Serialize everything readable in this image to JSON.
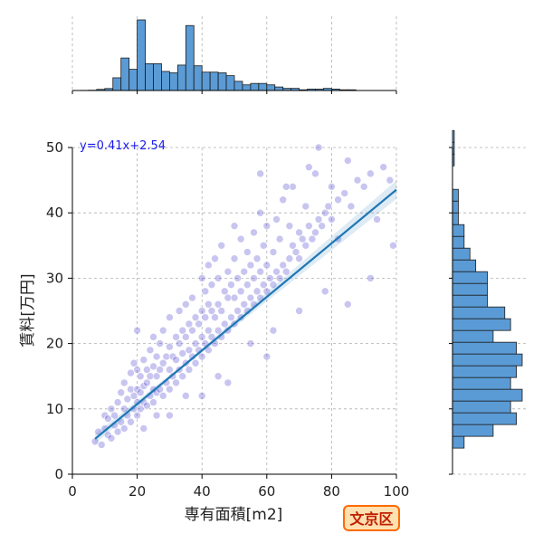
{
  "chart_data": {
    "type": "scatter",
    "title": "",
    "xlabel": "専有面積[m2]",
    "ylabel": "賃料[万円]",
    "xlim": [
      0,
      100
    ],
    "ylim": [
      0,
      50
    ],
    "xticks": [
      0,
      20,
      40,
      60,
      80,
      100
    ],
    "yticks": [
      0,
      10,
      20,
      30,
      40,
      50
    ],
    "grid": true,
    "regression": {
      "label": "y=0.41x+2.54",
      "slope": 0.41,
      "intercept": 2.54,
      "x_range": [
        7,
        100
      ]
    },
    "badge": "文京区",
    "colors": {
      "points": "#3a2fc8",
      "regression_line": "#1f77b4",
      "histogram_fill": "#5b9bd5",
      "equation_text": "#1a1aee",
      "badge_fill": "#ffe0b0",
      "badge_border": "#ff6a00",
      "badge_text": "#c02000"
    },
    "sample_points": [
      [
        7,
        5
      ],
      [
        8,
        6.5
      ],
      [
        9,
        4.5
      ],
      [
        10,
        7
      ],
      [
        10,
        9
      ],
      [
        11,
        6
      ],
      [
        11,
        8.5
      ],
      [
        12,
        5.5
      ],
      [
        12,
        10
      ],
      [
        13,
        7.5
      ],
      [
        13,
        9
      ],
      [
        14,
        6.5
      ],
      [
        14,
        11
      ],
      [
        15,
        8
      ],
      [
        15,
        12.5
      ],
      [
        16,
        7
      ],
      [
        16,
        10
      ],
      [
        16,
        14
      ],
      [
        17,
        9
      ],
      [
        17,
        11.5
      ],
      [
        18,
        8
      ],
      [
        18,
        13
      ],
      [
        18,
        15.5
      ],
      [
        19,
        10
      ],
      [
        19,
        12
      ],
      [
        19,
        17
      ],
      [
        20,
        9
      ],
      [
        20,
        11
      ],
      [
        20,
        13
      ],
      [
        20,
        16
      ],
      [
        21,
        10
      ],
      [
        21,
        12.5
      ],
      [
        21,
        15
      ],
      [
        22,
        11
      ],
      [
        22,
        13.5
      ],
      [
        22,
        17.5
      ],
      [
        23,
        10.5
      ],
      [
        23,
        14
      ],
      [
        23,
        16
      ],
      [
        24,
        12
      ],
      [
        24,
        15
      ],
      [
        24,
        19
      ],
      [
        25,
        11
      ],
      [
        25,
        13
      ],
      [
        25,
        16.5
      ],
      [
        25,
        21
      ],
      [
        26,
        12.5
      ],
      [
        26,
        15
      ],
      [
        26,
        18
      ],
      [
        27,
        13
      ],
      [
        27,
        16
      ],
      [
        27,
        20
      ],
      [
        28,
        12
      ],
      [
        28,
        17
      ],
      [
        28,
        22
      ],
      [
        29,
        14
      ],
      [
        29,
        18
      ],
      [
        30,
        13
      ],
      [
        30,
        16
      ],
      [
        30,
        19.5
      ],
      [
        30,
        24
      ],
      [
        31,
        15
      ],
      [
        31,
        18
      ],
      [
        32,
        14
      ],
      [
        32,
        17.5
      ],
      [
        32,
        21
      ],
      [
        33,
        16
      ],
      [
        33,
        20
      ],
      [
        33,
        25
      ],
      [
        34,
        15
      ],
      [
        34,
        18.5
      ],
      [
        34,
        22
      ],
      [
        35,
        17
      ],
      [
        35,
        21
      ],
      [
        35,
        26
      ],
      [
        36,
        16
      ],
      [
        36,
        19
      ],
      [
        36,
        23
      ],
      [
        37,
        18
      ],
      [
        37,
        22
      ],
      [
        37,
        27
      ],
      [
        38,
        17
      ],
      [
        38,
        20
      ],
      [
        38,
        24
      ],
      [
        39,
        19
      ],
      [
        39,
        23
      ],
      [
        40,
        18
      ],
      [
        40,
        21
      ],
      [
        40,
        25
      ],
      [
        40,
        30
      ],
      [
        41,
        20
      ],
      [
        41,
        24
      ],
      [
        41,
        28
      ],
      [
        42,
        19
      ],
      [
        42,
        22
      ],
      [
        42,
        26
      ],
      [
        42,
        32
      ],
      [
        43,
        21
      ],
      [
        43,
        25
      ],
      [
        43,
        29
      ],
      [
        44,
        20
      ],
      [
        44,
        24
      ],
      [
        44,
        33
      ],
      [
        45,
        22
      ],
      [
        45,
        26
      ],
      [
        45,
        30
      ],
      [
        46,
        21
      ],
      [
        46,
        25
      ],
      [
        46,
        35
      ],
      [
        47,
        23
      ],
      [
        47,
        28
      ],
      [
        48,
        22
      ],
      [
        48,
        27
      ],
      [
        48,
        31
      ],
      [
        49,
        24
      ],
      [
        49,
        29
      ],
      [
        50,
        23
      ],
      [
        50,
        27
      ],
      [
        50,
        33
      ],
      [
        50,
        38
      ],
      [
        51,
        25
      ],
      [
        51,
        30
      ],
      [
        52,
        24
      ],
      [
        52,
        28
      ],
      [
        52,
        36
      ],
      [
        53,
        26
      ],
      [
        53,
        31
      ],
      [
        54,
        25
      ],
      [
        54,
        29
      ],
      [
        54,
        34
      ],
      [
        55,
        27
      ],
      [
        55,
        32
      ],
      [
        56,
        26
      ],
      [
        56,
        30
      ],
      [
        56,
        37
      ],
      [
        57,
        28
      ],
      [
        57,
        33
      ],
      [
        58,
        27
      ],
      [
        58,
        31
      ],
      [
        58,
        40
      ],
      [
        59,
        29
      ],
      [
        59,
        35
      ],
      [
        60,
        28
      ],
      [
        60,
        32
      ],
      [
        60,
        38
      ],
      [
        61,
        30
      ],
      [
        62,
        29
      ],
      [
        62,
        34
      ],
      [
        63,
        31
      ],
      [
        63,
        39
      ],
      [
        64,
        30
      ],
      [
        64,
        36
      ],
      [
        65,
        32
      ],
      [
        65,
        42
      ],
      [
        66,
        31
      ],
      [
        67,
        33
      ],
      [
        67,
        38
      ],
      [
        68,
        35
      ],
      [
        68,
        44
      ],
      [
        69,
        34
      ],
      [
        70,
        33
      ],
      [
        70,
        37
      ],
      [
        71,
        36
      ],
      [
        72,
        35
      ],
      [
        72,
        41
      ],
      [
        73,
        38
      ],
      [
        74,
        36
      ],
      [
        75,
        37
      ],
      [
        75,
        46
      ],
      [
        76,
        39
      ],
      [
        77,
        38
      ],
      [
        78,
        40
      ],
      [
        79,
        41
      ],
      [
        80,
        39
      ],
      [
        80,
        44
      ],
      [
        82,
        42
      ],
      [
        84,
        43
      ],
      [
        85,
        48
      ],
      [
        86,
        41
      ],
      [
        88,
        45
      ],
      [
        90,
        44
      ],
      [
        92,
        46
      ],
      [
        94,
        39
      ],
      [
        96,
        47
      ],
      [
        98,
        45
      ],
      [
        99,
        35
      ],
      [
        20,
        22
      ],
      [
        30,
        9
      ],
      [
        40,
        12
      ],
      [
        45,
        15
      ],
      [
        55,
        20
      ],
      [
        62,
        22
      ],
      [
        70,
        25
      ],
      [
        78,
        28
      ],
      [
        85,
        26
      ],
      [
        92,
        30
      ],
      [
        22,
        7
      ],
      [
        26,
        9
      ],
      [
        35,
        12
      ],
      [
        48,
        14
      ],
      [
        60,
        18
      ],
      [
        66,
        44
      ],
      [
        73,
        47
      ],
      [
        58,
        46
      ],
      [
        76,
        50
      ],
      [
        82,
        36
      ]
    ],
    "top_hist": {
      "bin_width": 2.5,
      "bins_start": 0,
      "counts": [
        0,
        1,
        2,
        8,
        14,
        90,
        230,
        150,
        500,
        190,
        190,
        135,
        125,
        180,
        460,
        175,
        130,
        130,
        125,
        105,
        65,
        40,
        50,
        50,
        40,
        25,
        15,
        15,
        5,
        10,
        10,
        15,
        10,
        5,
        5,
        0,
        0,
        0,
        0,
        0
      ]
    },
    "right_hist": {
      "bin_width": 1.8,
      "bins_start": 4,
      "counts": [
        2,
        7,
        11,
        10,
        12,
        10,
        11,
        12,
        11,
        7,
        10,
        9,
        6,
        6,
        6,
        4,
        3,
        2,
        2,
        1,
        1,
        1,
        0,
        0,
        0.3,
        0.3,
        0.3
      ]
    }
  }
}
